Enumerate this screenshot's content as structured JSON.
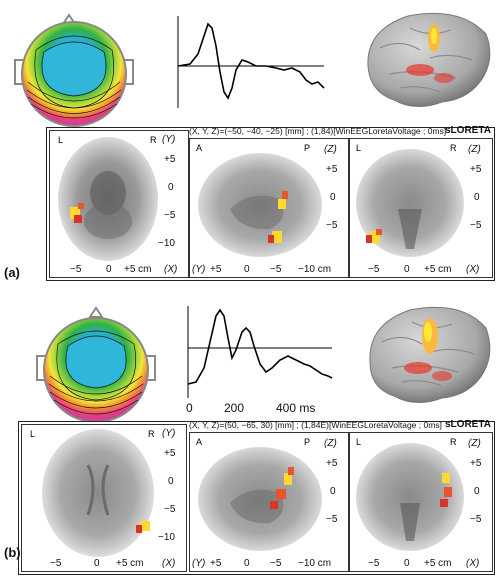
{
  "panels": [
    {
      "label": "(a)",
      "coords_header": "(X, Y, Z)=(−50, −40, −25) [mm] ; (1,84)[WinEEGLoretaVoltage ; 0ms]",
      "method": "sLORETA",
      "axial": {
        "lr_left": "L",
        "lr_right": "R",
        "yaxis": "(Y)",
        "yticks": [
          "+5",
          "0",
          "−5",
          "−10"
        ],
        "xticks": [
          "−5",
          "0",
          "+5 cm",
          "(X)"
        ]
      },
      "sagittal": {
        "ap_left": "A",
        "ap_right": "P",
        "zaxis": "(Z)",
        "zticks": [
          "+5",
          "0",
          "−5"
        ],
        "xaxis": "(Y)",
        "xticks": [
          "+5",
          "0",
          "−5",
          "−10 cm"
        ]
      },
      "coronal": {
        "lr_left": "L",
        "lr_right": "R",
        "zaxis": "(Z)",
        "zticks": [
          "+5",
          "0",
          "−5"
        ],
        "xticks": [
          "−5",
          "0",
          "+5 cm",
          "(X)"
        ]
      }
    },
    {
      "label": "(b)",
      "coords_header": "(X, Y, Z)=(50, −65, 30) [mm] ; (1,84E)[WinEEGLoretaVoltage ; 0ms]",
      "method": "sLORETA",
      "axial": {
        "lr_left": "L",
        "lr_right": "R",
        "yaxis": "(Y)",
        "yticks": [
          "+5",
          "0",
          "−5",
          "−10"
        ],
        "xticks": [
          "−5",
          "0",
          "+5 cm",
          "(X)"
        ]
      },
      "sagittal": {
        "ap_left": "A",
        "ap_right": "P",
        "zaxis": "(Z)",
        "zticks": [
          "+5",
          "0",
          "−5"
        ],
        "xaxis": "(Y)",
        "xticks": [
          "+5",
          "0",
          "−5",
          "−10 cm"
        ]
      },
      "coronal": {
        "lr_left": "L",
        "lr_right": "R",
        "zaxis": "(Z)",
        "zticks": [
          "+5",
          "0",
          "−5"
        ],
        "xticks": [
          "−5",
          "0",
          "+5 cm",
          "(X)"
        ]
      }
    }
  ],
  "time_axis": {
    "ticks": [
      "0",
      "200",
      "400 ms"
    ]
  },
  "colors": {
    "activation_red": "#d8342a",
    "activation_yellow": "#ffe83a",
    "scalp_blue": "#2fb6d8",
    "scalp_green": "#2fb04a",
    "scalp_magenta": "#e8407c"
  }
}
